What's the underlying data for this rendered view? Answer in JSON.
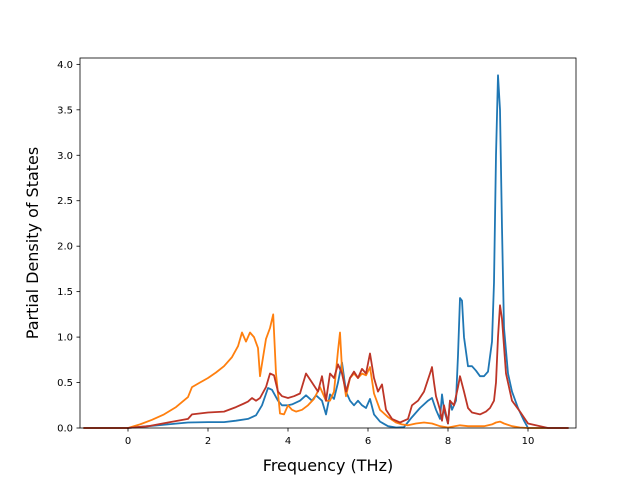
{
  "chart_data": {
    "type": "line",
    "title": "",
    "xlabel": "Frequency (THz)",
    "ylabel": "Partial Density of States",
    "xlim": [
      -1.2,
      11.2
    ],
    "ylim": [
      0,
      4.07
    ],
    "xticks": [
      0,
      2,
      4,
      6,
      8,
      10
    ],
    "yticks": [
      0.0,
      0.5,
      1.0,
      1.5,
      2.0,
      2.5,
      3.0,
      3.5,
      4.0
    ],
    "xtick_labels": [
      "0",
      "2",
      "4",
      "6",
      "8",
      "10"
    ],
    "ytick_labels": [
      "0.0",
      "0.5",
      "1.0",
      "1.5",
      "2.0",
      "2.5",
      "3.0",
      "3.5",
      "4.0"
    ],
    "grid": false,
    "legend": false,
    "series": [
      {
        "color": "#1f77b4",
        "x": [
          -1.1,
          0,
          0.5,
          1.0,
          1.5,
          2.0,
          2.4,
          2.7,
          3.0,
          3.2,
          3.35,
          3.5,
          3.6,
          3.75,
          3.85,
          4.0,
          4.1,
          4.3,
          4.45,
          4.6,
          4.7,
          4.85,
          4.95,
          5.05,
          5.15,
          5.25,
          5.35,
          5.45,
          5.55,
          5.65,
          5.75,
          5.85,
          5.95,
          6.05,
          6.15,
          6.3,
          6.5,
          6.7,
          6.9,
          7.1,
          7.3,
          7.5,
          7.6,
          7.7,
          7.8,
          7.85,
          7.9,
          8.0,
          8.05,
          8.1,
          8.2,
          8.25,
          8.3,
          8.35,
          8.4,
          8.5,
          8.6,
          8.7,
          8.8,
          8.9,
          9.0,
          9.1,
          9.15,
          9.2,
          9.25,
          9.3,
          9.35,
          9.4,
          9.5,
          9.6,
          9.75,
          9.9,
          10.0,
          10.5,
          11.0
        ],
        "y": [
          0,
          0,
          0.02,
          0.04,
          0.06,
          0.065,
          0.065,
          0.08,
          0.1,
          0.14,
          0.25,
          0.44,
          0.42,
          0.3,
          0.25,
          0.25,
          0.26,
          0.3,
          0.36,
          0.3,
          0.36,
          0.3,
          0.15,
          0.37,
          0.32,
          0.5,
          0.72,
          0.4,
          0.3,
          0.25,
          0.3,
          0.25,
          0.22,
          0.32,
          0.15,
          0.07,
          0.02,
          0.005,
          0.01,
          0.12,
          0.22,
          0.3,
          0.33,
          0.2,
          0.1,
          0.37,
          0.2,
          0.05,
          0.3,
          0.2,
          0.3,
          0.8,
          1.43,
          1.4,
          1.0,
          0.68,
          0.68,
          0.63,
          0.57,
          0.57,
          0.62,
          0.95,
          1.6,
          3.0,
          3.88,
          3.5,
          2.2,
          1.1,
          0.6,
          0.4,
          0.22,
          0.08,
          0,
          0,
          0
        ]
      },
      {
        "color": "#ff7f0e",
        "x": [
          -1.1,
          0,
          0.3,
          0.6,
          0.9,
          1.2,
          1.5,
          1.6,
          1.8,
          2.0,
          2.2,
          2.4,
          2.6,
          2.75,
          2.85,
          2.95,
          3.05,
          3.15,
          3.25,
          3.3,
          3.45,
          3.55,
          3.63,
          3.7,
          3.8,
          3.9,
          4.0,
          4.1,
          4.2,
          4.35,
          4.5,
          4.65,
          4.8,
          4.95,
          5.05,
          5.15,
          5.25,
          5.3,
          5.35,
          5.45,
          5.55,
          5.65,
          5.75,
          5.85,
          5.95,
          6.05,
          6.15,
          6.3,
          6.5,
          6.7,
          6.85,
          7.0,
          7.2,
          7.4,
          7.6,
          7.8,
          8.0,
          8.3,
          8.5,
          8.7,
          8.9,
          9.1,
          9.2,
          9.3,
          9.4,
          9.6,
          9.8,
          10.0,
          10.5,
          11.0
        ],
        "y": [
          0,
          0,
          0.04,
          0.09,
          0.15,
          0.23,
          0.34,
          0.45,
          0.5,
          0.55,
          0.61,
          0.68,
          0.78,
          0.9,
          1.05,
          0.95,
          1.05,
          1.0,
          0.88,
          0.57,
          0.98,
          1.1,
          1.25,
          0.6,
          0.16,
          0.15,
          0.25,
          0.2,
          0.18,
          0.2,
          0.25,
          0.32,
          0.45,
          0.3,
          0.3,
          0.4,
          0.85,
          1.05,
          0.65,
          0.35,
          0.55,
          0.6,
          0.55,
          0.6,
          0.58,
          0.67,
          0.38,
          0.2,
          0.12,
          0.06,
          0.04,
          0.03,
          0.05,
          0.06,
          0.05,
          0.02,
          0.005,
          0.03,
          0.02,
          0.02,
          0.02,
          0.04,
          0.06,
          0.07,
          0.05,
          0.02,
          0.005,
          0,
          0,
          0
        ]
      },
      {
        "color": "#bd3527",
        "x": [
          -1.1,
          0,
          0.5,
          1.0,
          1.5,
          1.6,
          2.0,
          2.4,
          2.7,
          2.9,
          3.0,
          3.1,
          3.2,
          3.3,
          3.45,
          3.55,
          3.65,
          3.75,
          3.85,
          4.0,
          4.15,
          4.3,
          4.45,
          4.6,
          4.75,
          4.85,
          4.95,
          5.05,
          5.15,
          5.25,
          5.35,
          5.45,
          5.55,
          5.65,
          5.75,
          5.85,
          5.95,
          6.05,
          6.15,
          6.25,
          6.35,
          6.45,
          6.6,
          6.8,
          7.0,
          7.1,
          7.25,
          7.4,
          7.55,
          7.6,
          7.65,
          7.7,
          7.8,
          7.85,
          7.9,
          8.0,
          8.05,
          8.15,
          8.25,
          8.3,
          8.4,
          8.5,
          8.6,
          8.8,
          8.95,
          9.05,
          9.15,
          9.2,
          9.25,
          9.3,
          9.35,
          9.45,
          9.6,
          9.8,
          10.0,
          10.5,
          11.0
        ],
        "y": [
          0,
          0,
          0.02,
          0.06,
          0.1,
          0.15,
          0.17,
          0.18,
          0.23,
          0.27,
          0.29,
          0.33,
          0.3,
          0.33,
          0.45,
          0.6,
          0.58,
          0.4,
          0.35,
          0.33,
          0.35,
          0.38,
          0.6,
          0.5,
          0.4,
          0.57,
          0.3,
          0.6,
          0.55,
          0.7,
          0.6,
          0.4,
          0.55,
          0.62,
          0.55,
          0.65,
          0.6,
          0.82,
          0.55,
          0.4,
          0.48,
          0.2,
          0.1,
          0.06,
          0.1,
          0.25,
          0.3,
          0.4,
          0.6,
          0.67,
          0.5,
          0.35,
          0.2,
          0.08,
          0.25,
          0.05,
          0.3,
          0.25,
          0.45,
          0.57,
          0.4,
          0.22,
          0.17,
          0.15,
          0.18,
          0.22,
          0.3,
          0.5,
          1.0,
          1.35,
          1.2,
          0.6,
          0.3,
          0.18,
          0.05,
          0,
          0
        ]
      }
    ]
  }
}
